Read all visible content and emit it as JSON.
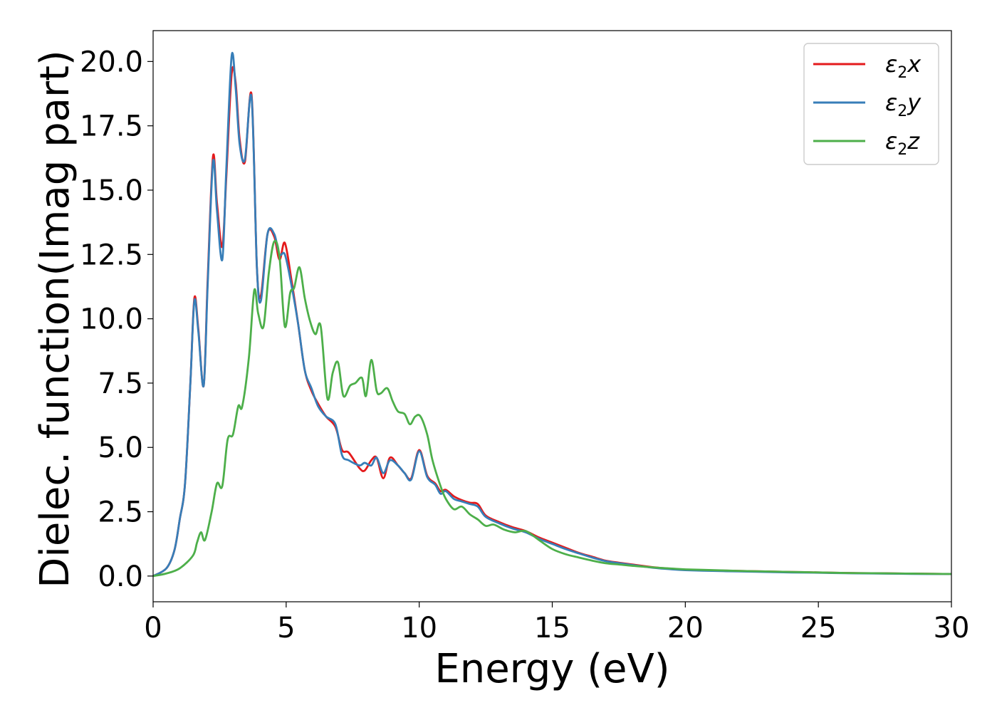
{
  "chart_data": {
    "type": "line",
    "title": "",
    "xlabel": "Energy (eV)",
    "ylabel": "Dielec. function(Imag part)",
    "xlim": [
      0,
      30
    ],
    "ylim": [
      -1,
      21.2
    ],
    "xticks": [
      "0",
      "5",
      "10",
      "15",
      "20",
      "25",
      "30"
    ],
    "yticks": [
      "0.0",
      "2.5",
      "5.0",
      "7.5",
      "10.0",
      "12.5",
      "15.0",
      "17.5",
      "20.0"
    ],
    "grid": false,
    "legend": {
      "position": "top-right",
      "entries": [
        {
          "base": "ε",
          "sub": "2",
          "suffix": "x",
          "color": "#e41a1c"
        },
        {
          "base": "ε",
          "sub": "2",
          "suffix": "y",
          "color": "#377eb8"
        },
        {
          "base": "ε",
          "sub": "2",
          "suffix": "z",
          "color": "#4daf4a"
        }
      ]
    },
    "series": [
      {
        "name": "ε2x",
        "color": "#e41a1c",
        "x": [
          0,
          0.5,
          0.8,
          1.0,
          1.2,
          1.4,
          1.55,
          1.7,
          1.9,
          2.05,
          2.25,
          2.4,
          2.6,
          2.75,
          2.95,
          3.1,
          3.25,
          3.45,
          3.7,
          3.9,
          4.05,
          4.3,
          4.55,
          4.75,
          4.95,
          5.2,
          5.45,
          5.7,
          5.95,
          6.2,
          6.5,
          6.85,
          7.1,
          7.35,
          7.75,
          7.95,
          8.2,
          8.4,
          8.65,
          8.9,
          9.2,
          9.45,
          9.7,
          10.0,
          10.3,
          10.6,
          10.8,
          11.0,
          11.3,
          11.6,
          11.9,
          12.2,
          12.5,
          13.0,
          13.5,
          14.0,
          14.5,
          15.0,
          15.5,
          16.0,
          16.5,
          17.0,
          17.5,
          18.0,
          18.5,
          19.0,
          19.5,
          20.0,
          21.0,
          22.0,
          23.0,
          24.0,
          25.0,
          26.0,
          27.0,
          28.0,
          29.0,
          30.0
        ],
        "values": [
          0,
          0.3,
          1.0,
          2.2,
          3.6,
          7.5,
          10.8,
          9.6,
          7.4,
          11.5,
          16.3,
          14.5,
          12.8,
          15.5,
          19.5,
          19.2,
          17.0,
          16.1,
          18.7,
          12.0,
          10.9,
          13.3,
          13.2,
          12.3,
          12.95,
          11.5,
          9.8,
          8.0,
          7.2,
          6.7,
          6.2,
          5.8,
          4.9,
          4.8,
          4.2,
          4.1,
          4.5,
          4.6,
          3.8,
          4.6,
          4.3,
          4.0,
          3.8,
          4.9,
          3.9,
          3.6,
          3.3,
          3.35,
          3.1,
          2.95,
          2.85,
          2.8,
          2.35,
          2.1,
          1.9,
          1.75,
          1.5,
          1.3,
          1.1,
          0.9,
          0.75,
          0.6,
          0.52,
          0.45,
          0.38,
          0.32,
          0.28,
          0.25,
          0.22,
          0.2,
          0.18,
          0.16,
          0.14,
          0.12,
          0.11,
          0.1,
          0.09,
          0.08
        ]
      },
      {
        "name": "ε2y",
        "color": "#377eb8",
        "x": [
          0,
          0.5,
          0.8,
          1.0,
          1.2,
          1.4,
          1.55,
          1.7,
          1.9,
          2.05,
          2.25,
          2.4,
          2.6,
          2.75,
          2.95,
          3.1,
          3.25,
          3.45,
          3.7,
          3.9,
          4.05,
          4.3,
          4.55,
          4.75,
          4.95,
          5.2,
          5.45,
          5.7,
          5.95,
          6.2,
          6.5,
          6.85,
          7.1,
          7.35,
          7.75,
          7.95,
          8.2,
          8.4,
          8.65,
          8.9,
          9.2,
          9.45,
          9.7,
          10.0,
          10.3,
          10.6,
          10.8,
          11.0,
          11.3,
          11.6,
          11.9,
          12.2,
          12.5,
          13.0,
          13.5,
          14.0,
          14.5,
          15.0,
          15.5,
          16.0,
          16.5,
          17.0,
          17.5,
          18.0,
          18.5,
          19.0,
          19.5,
          20.0,
          21.0,
          22.0,
          23.0,
          24.0,
          25.0,
          26.0,
          27.0,
          28.0,
          29.0,
          30.0
        ],
        "values": [
          0,
          0.3,
          1.0,
          2.2,
          3.6,
          7.5,
          10.7,
          9.5,
          7.4,
          11.3,
          16.1,
          14.2,
          12.3,
          15.8,
          20.2,
          19.0,
          16.8,
          16.2,
          18.6,
          12.0,
          10.7,
          13.3,
          13.3,
          12.5,
          12.5,
          11.3,
          9.8,
          8.0,
          7.3,
          6.6,
          6.2,
          5.9,
          4.7,
          4.5,
          4.3,
          4.4,
          4.3,
          4.6,
          4.0,
          4.5,
          4.3,
          4.0,
          3.75,
          4.85,
          3.85,
          3.55,
          3.2,
          3.3,
          3.0,
          2.9,
          2.8,
          2.7,
          2.3,
          2.05,
          1.85,
          1.7,
          1.45,
          1.25,
          1.05,
          0.88,
          0.72,
          0.58,
          0.5,
          0.43,
          0.36,
          0.3,
          0.26,
          0.23,
          0.2,
          0.18,
          0.16,
          0.14,
          0.13,
          0.11,
          0.1,
          0.09,
          0.08,
          0.08
        ]
      },
      {
        "name": "ε2z",
        "color": "#4daf4a",
        "x": [
          0,
          0.5,
          1.0,
          1.5,
          1.65,
          1.8,
          1.95,
          2.2,
          2.4,
          2.6,
          2.8,
          3.0,
          3.2,
          3.35,
          3.6,
          3.8,
          3.95,
          4.15,
          4.35,
          4.55,
          4.75,
          4.95,
          5.15,
          5.3,
          5.5,
          5.7,
          5.9,
          6.1,
          6.3,
          6.55,
          6.75,
          6.95,
          7.15,
          7.4,
          7.6,
          7.85,
          8.0,
          8.2,
          8.4,
          8.55,
          8.8,
          9.0,
          9.2,
          9.45,
          9.65,
          9.85,
          10.05,
          10.3,
          10.5,
          10.8,
          11.0,
          11.3,
          11.6,
          11.9,
          12.2,
          12.5,
          12.8,
          13.2,
          13.6,
          14.0,
          14.5,
          15.0,
          15.5,
          16.0,
          16.5,
          17.0,
          17.5,
          18.0,
          18.5,
          19.0,
          19.5,
          20.0,
          21.0,
          22.0,
          23.0,
          24.0,
          25.0,
          26.0,
          27.0,
          28.0,
          29.0,
          30.0
        ],
        "values": [
          0,
          0.1,
          0.3,
          0.8,
          1.3,
          1.7,
          1.4,
          2.5,
          3.6,
          3.5,
          5.3,
          5.5,
          6.6,
          6.6,
          8.5,
          11.1,
          10.2,
          9.7,
          11.8,
          13.0,
          12.4,
          9.7,
          11.0,
          11.2,
          12.0,
          10.8,
          9.9,
          9.4,
          9.7,
          6.9,
          7.9,
          8.3,
          7.0,
          7.4,
          7.5,
          7.7,
          7.0,
          8.4,
          7.2,
          7.1,
          7.3,
          6.8,
          6.4,
          6.3,
          5.9,
          6.2,
          6.2,
          5.5,
          4.5,
          3.5,
          3.0,
          2.6,
          2.7,
          2.4,
          2.2,
          1.95,
          2.0,
          1.8,
          1.7,
          1.75,
          1.4,
          1.05,
          0.85,
          0.72,
          0.6,
          0.5,
          0.45,
          0.4,
          0.36,
          0.32,
          0.29,
          0.26,
          0.23,
          0.2,
          0.18,
          0.16,
          0.14,
          0.12,
          0.11,
          0.1,
          0.09,
          0.08
        ]
      }
    ]
  }
}
